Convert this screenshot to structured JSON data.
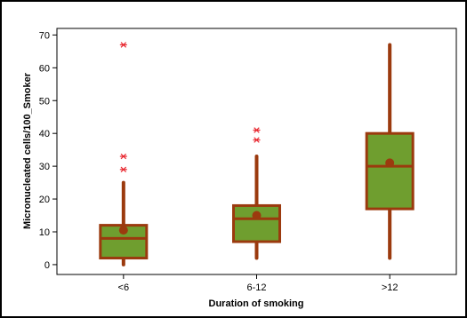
{
  "chart_data": {
    "type": "box",
    "title": "",
    "xlabel": "Duration of smoking",
    "ylabel": "Micronucleated cells/100_Smoker",
    "ylim": [
      -3,
      72
    ],
    "yticks": [
      0,
      10,
      20,
      30,
      40,
      50,
      60,
      70
    ],
    "grid": false,
    "legend": "none",
    "categories": [
      "<6",
      "6-12",
      ">12"
    ],
    "boxes": [
      {
        "category": "<6",
        "min": 0,
        "q1": 2,
        "median": 8,
        "q3": 12,
        "max": 25,
        "mean": 10.5,
        "outliers": [
          29,
          33,
          67
        ]
      },
      {
        "category": "6-12",
        "min": 2,
        "q1": 7,
        "median": 14,
        "q3": 18,
        "max": 33,
        "mean": 15,
        "outliers": [
          38,
          41
        ]
      },
      {
        "category": ">12",
        "min": 2,
        "q1": 17,
        "median": 30,
        "q3": 40,
        "max": 67,
        "mean": 31,
        "outliers": []
      }
    ],
    "colors": {
      "box_fill": "#6f9e2f",
      "box_edge": "#9b3a0e",
      "outlier": "#e8272f",
      "frame": "#000000",
      "plot_background": "#ffffff",
      "outer_background": "#ffffff"
    }
  }
}
